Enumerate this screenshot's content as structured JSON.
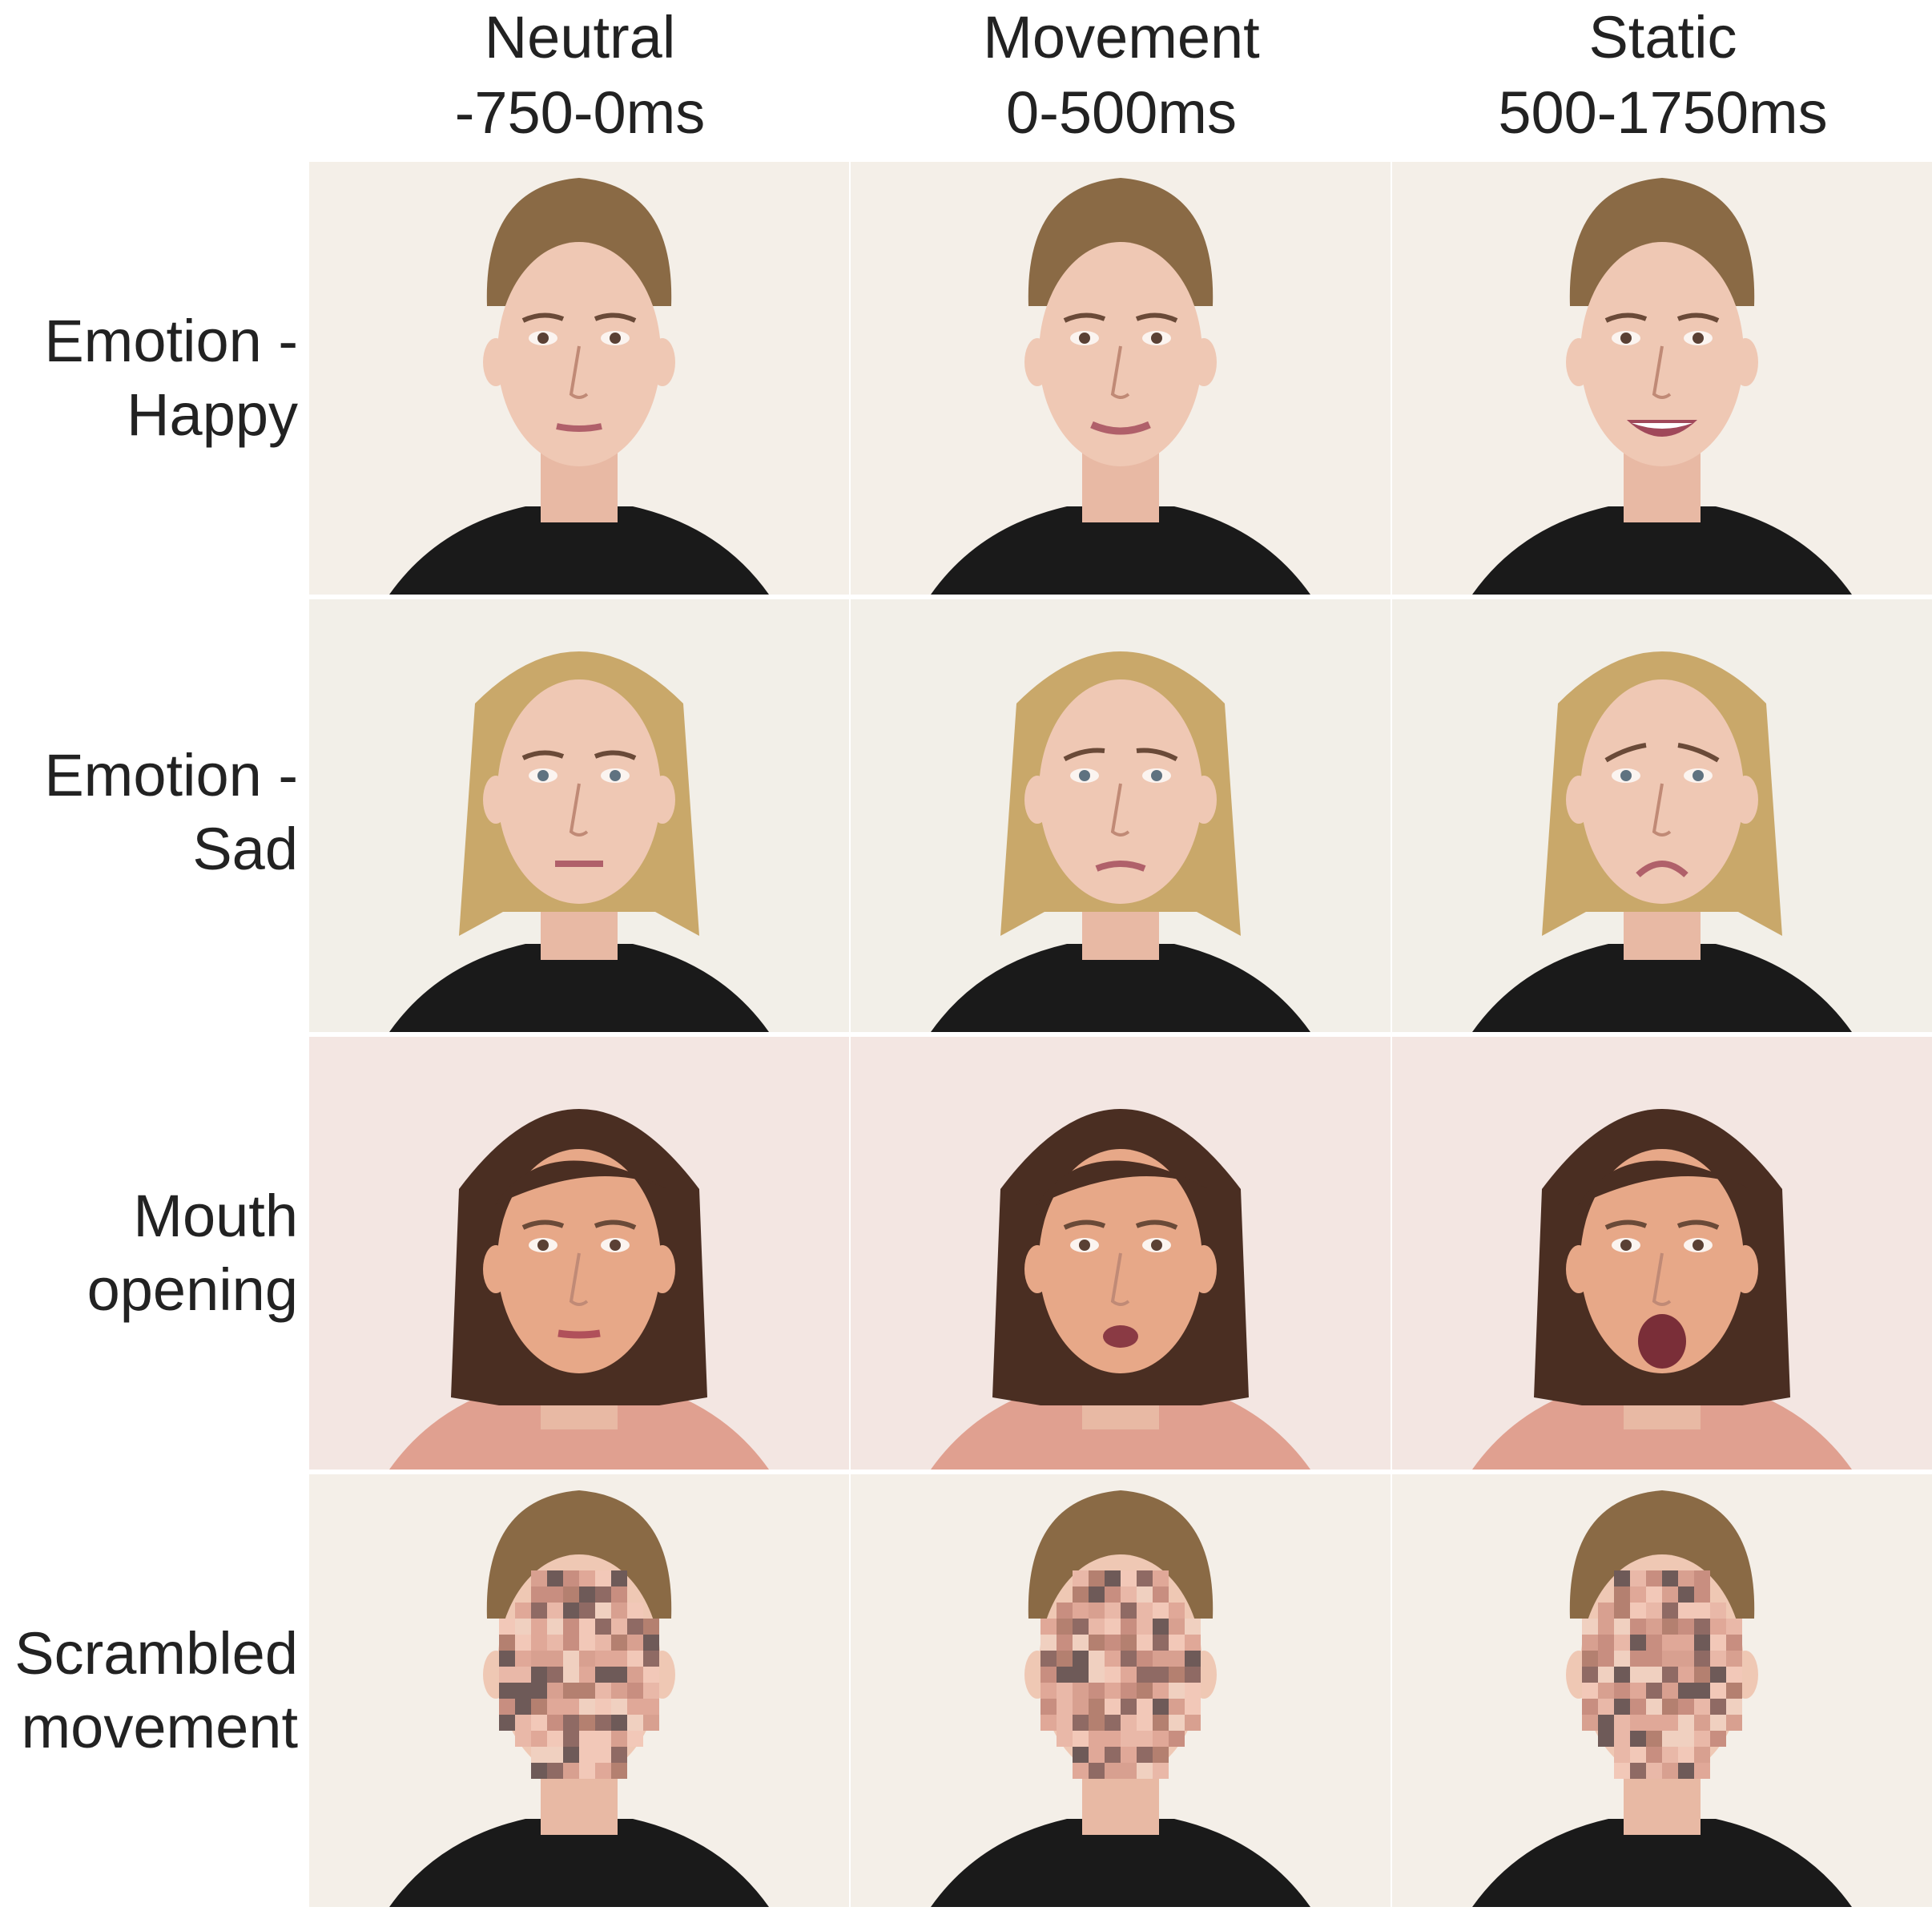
{
  "columns": [
    {
      "line1": "Neutral",
      "line2": "-750-0ms"
    },
    {
      "line1": "Movement",
      "line2": "0-500ms"
    },
    {
      "line1": "Static",
      "line2": "500-1750ms"
    }
  ],
  "rows": [
    {
      "line1": "Emotion -",
      "line2": "Happy",
      "hair": "#8a6a45",
      "shirt": "#1a1a1a",
      "bg": "#f4efe8",
      "expressions": [
        "neutral face",
        "slight smile",
        "broad smile showing teeth"
      ]
    },
    {
      "line1": "Emotion -",
      "line2": "Sad",
      "hair": "#c9a86a",
      "shirt": "#1a1a1a",
      "bg": "#f2efe8",
      "expressions": [
        "neutral face",
        "frown beginning",
        "sad frown"
      ]
    },
    {
      "line1": "Mouth",
      "line2": "opening",
      "hair": "#4a2e22",
      "shirt": "#e0a090",
      "bg": "#f3e6e2",
      "expressions": [
        "mouth closed",
        "mouth slightly open",
        "mouth wide open"
      ]
    },
    {
      "line1": "Scrambled",
      "line2": "movement",
      "hair": "#8a6a45",
      "shirt": "#1a1a1a",
      "bg": "#f4efe8",
      "expressions": [
        "scrambled face",
        "scrambled face",
        "scrambled face"
      ]
    }
  ]
}
